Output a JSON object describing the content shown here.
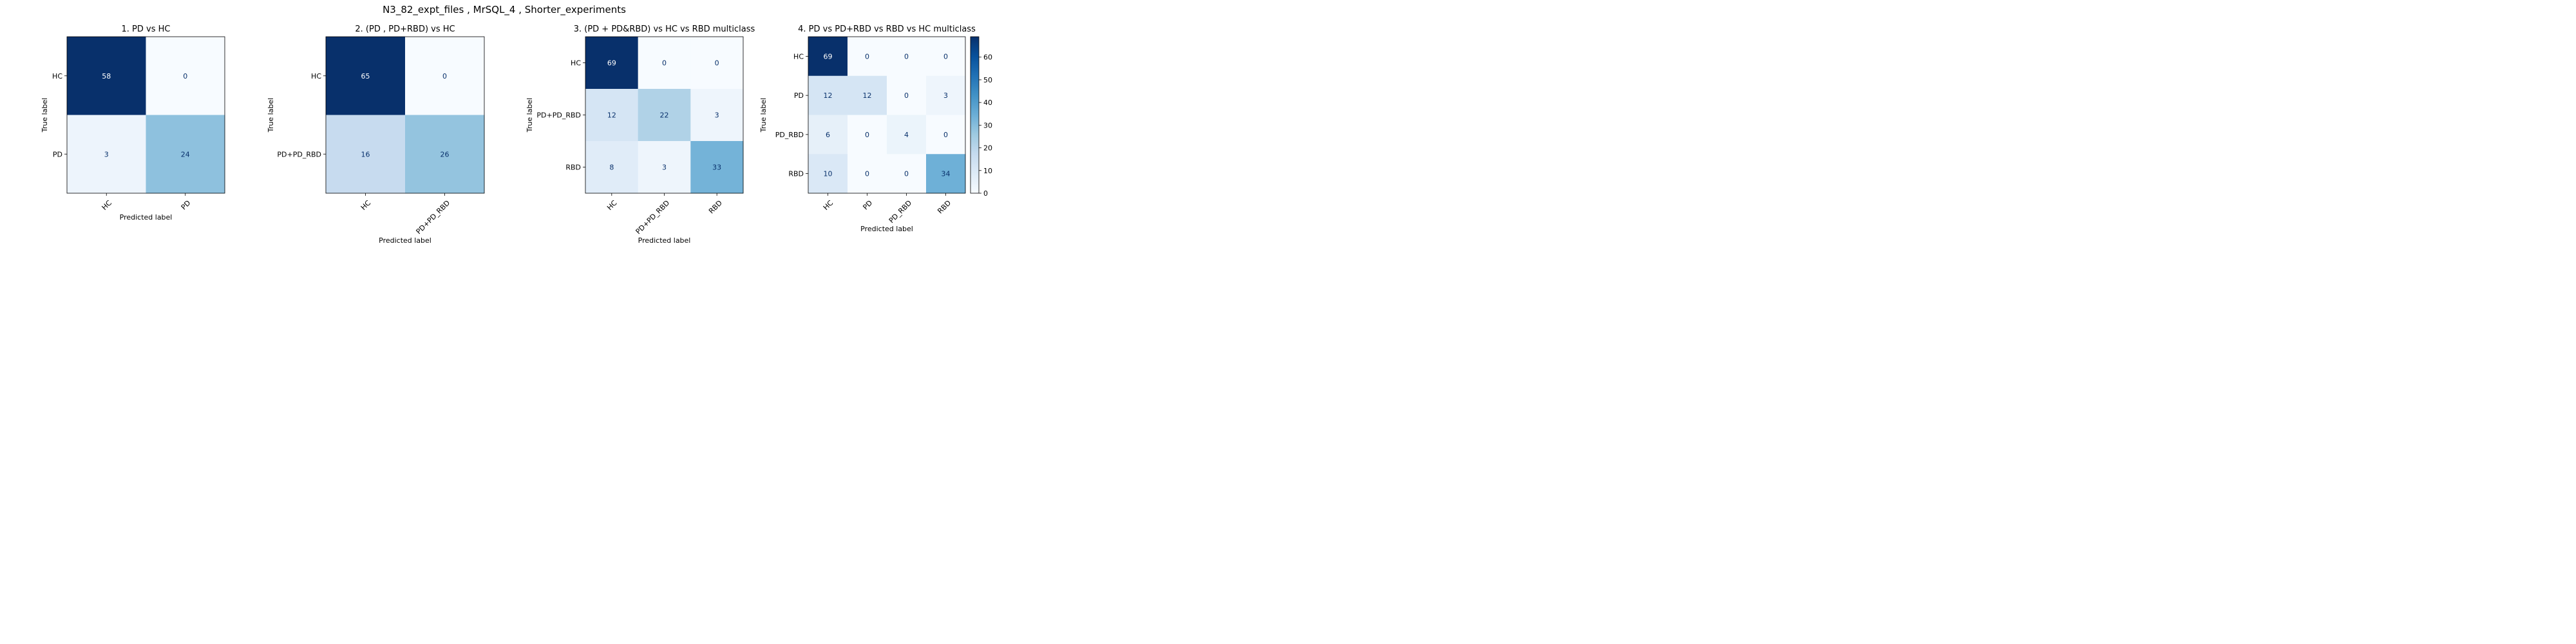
{
  "suptitle": "N3_82_expt_files , MrSQL_4 , Shorter_experiments",
  "colormap": {
    "name": "Blues",
    "stops": [
      "#f7fbff",
      "#deebf7",
      "#c6dbef",
      "#9ecae1",
      "#6baed6",
      "#4292c6",
      "#2171b5",
      "#08519c",
      "#08306b"
    ]
  },
  "chart_data": [
    {
      "type": "heatmap",
      "title": "1. PD vs HC",
      "xlabel": "Predicted label",
      "ylabel": "True label",
      "row_labels": [
        "HC",
        "PD"
      ],
      "col_labels": [
        "HC",
        "PD"
      ],
      "values": [
        [
          58,
          0
        ],
        [
          3,
          24
        ]
      ],
      "vmin": 0,
      "vmax": 58
    },
    {
      "type": "heatmap",
      "title": "2. (PD , PD+RBD) vs HC",
      "xlabel": "Predicted label",
      "ylabel": "True label",
      "row_labels": [
        "HC",
        "PD+PD_RBD"
      ],
      "col_labels": [
        "HC",
        "PD+PD_RBD"
      ],
      "values": [
        [
          65,
          0
        ],
        [
          16,
          26
        ]
      ],
      "vmin": 0,
      "vmax": 65
    },
    {
      "type": "heatmap",
      "title": "3. (PD + PD&RBD) vs HC vs RBD  multiclass",
      "xlabel": "Predicted label",
      "ylabel": "True label",
      "row_labels": [
        "HC",
        "PD+PD_RBD",
        "RBD"
      ],
      "col_labels": [
        "HC",
        "PD+PD_RBD",
        "RBD"
      ],
      "values": [
        [
          69,
          0,
          0
        ],
        [
          12,
          22,
          3
        ],
        [
          8,
          3,
          33
        ]
      ],
      "vmin": 0,
      "vmax": 69
    },
    {
      "type": "heatmap",
      "title": "4. PD vs PD+RBD vs RBD vs HC  multiclass",
      "xlabel": "Predicted label",
      "ylabel": "True label",
      "row_labels": [
        "HC",
        "PD",
        "PD_RBD",
        "RBD"
      ],
      "col_labels": [
        "HC",
        "PD",
        "PD_RBD",
        "RBD"
      ],
      "values": [
        [
          69,
          0,
          0,
          0
        ],
        [
          12,
          12,
          0,
          3
        ],
        [
          6,
          0,
          4,
          0
        ],
        [
          10,
          0,
          0,
          34
        ]
      ],
      "vmin": 0,
      "vmax": 69,
      "colorbar": {
        "ticks": [
          0,
          10,
          20,
          30,
          40,
          50,
          60
        ]
      }
    }
  ]
}
